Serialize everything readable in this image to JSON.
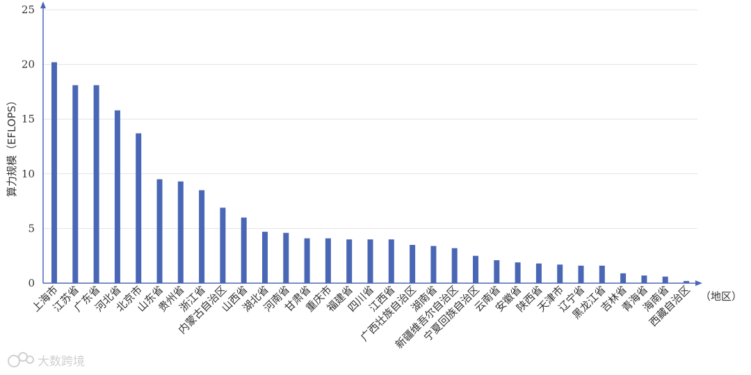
{
  "chart_data": {
    "type": "bar",
    "title": "",
    "ylabel": "算力规模（EFLOPS）",
    "xlabel": "（地区）",
    "ylim": [
      0,
      25
    ],
    "yticks": [
      0,
      5,
      10,
      15,
      20,
      25
    ],
    "grid": true,
    "bar_color": "#4a67b5",
    "categories": [
      "上海市",
      "江苏省",
      "广东省",
      "河北省",
      "北京市",
      "山东省",
      "贵州省",
      "浙江省",
      "内蒙古自治区",
      "山西省",
      "湖北省",
      "河南省",
      "甘肃省",
      "重庆市",
      "福建省",
      "四川省",
      "江西省",
      "广西壮族自治区",
      "湖南省",
      "新疆维吾尔自治区",
      "宁夏回族自治区",
      "云南省",
      "安徽省",
      "陕西省",
      "天津市",
      "辽宁省",
      "黑龙江省",
      "吉林省",
      "青海省",
      "海南省",
      "西藏自治区"
    ],
    "values": [
      20.2,
      18.1,
      18.1,
      15.8,
      13.7,
      9.5,
      9.3,
      8.5,
      6.9,
      6.0,
      4.7,
      4.6,
      4.1,
      4.1,
      4.0,
      4.0,
      4.0,
      3.5,
      3.4,
      3.2,
      2.5,
      2.1,
      1.9,
      1.8,
      1.7,
      1.6,
      1.6,
      0.9,
      0.7,
      0.6,
      0.2
    ]
  },
  "watermark": {
    "text": "大数跨境",
    "logo_icon": "cloud-link-logo-icon"
  }
}
